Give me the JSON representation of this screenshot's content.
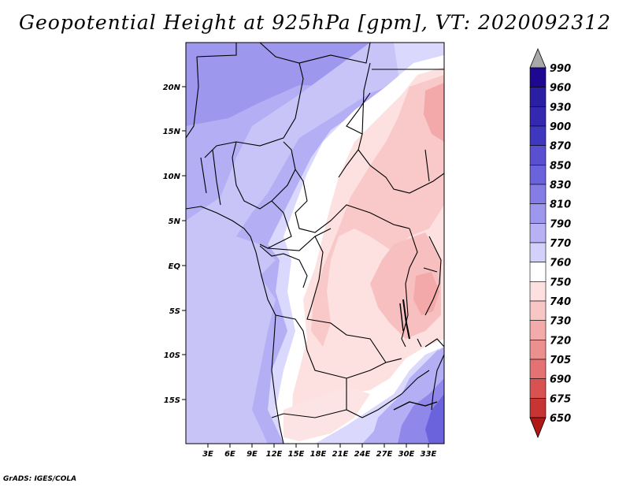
{
  "title": "Geopotential Height at 925hPa [gpm], VT: 2020092312",
  "credit": "GrADS: IGES/COLA",
  "map": {
    "lat_range": [
      -20,
      25
    ],
    "lon_range": [
      0,
      35
    ],
    "lat_ticks": [
      "20N",
      "15N",
      "10N",
      "5N",
      "EQ",
      "5S",
      "10S",
      "15S"
    ],
    "lon_ticks": [
      "3E",
      "6E",
      "9E",
      "12E",
      "15E",
      "18E",
      "21E",
      "24E",
      "27E",
      "30E",
      "33E"
    ],
    "colorbar_labels": [
      "990",
      "960",
      "930",
      "900",
      "870",
      "850",
      "830",
      "810",
      "790",
      "770",
      "760",
      "750",
      "740",
      "730",
      "720",
      "705",
      "690",
      "675",
      "650"
    ],
    "colorbar_colors": [
      "#1e0891",
      "#2a1fa3",
      "#3427b0",
      "#4037bf",
      "#5a4fd0",
      "#6b63dc",
      "#857ce5",
      "#9e97ee",
      "#b8b2f4",
      "#d3d0fb",
      "#ffffff",
      "#fde0e0",
      "#f9c6c6",
      "#f3aaaa",
      "#ec8f8f",
      "#e47272",
      "#d85252",
      "#c73434",
      "#b32020"
    ],
    "colorbar_arrow_top": "#a8a8a8",
    "colorbar_arrow_bottom": "#b01818"
  }
}
